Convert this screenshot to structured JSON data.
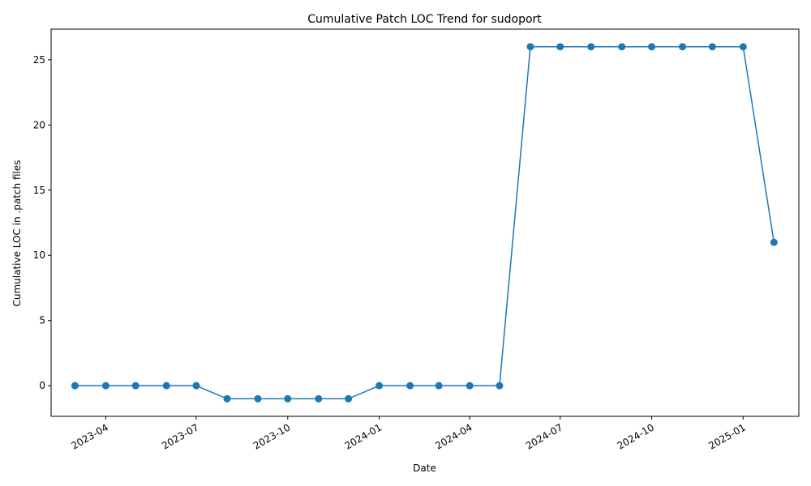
{
  "chart_data": {
    "type": "line",
    "title": "Cumulative Patch LOC Trend for sudoport",
    "xlabel": "Date",
    "ylabel": "Cumulative LOC in .patch files",
    "x": [
      "2023-03-01",
      "2023-04-01",
      "2023-05-01",
      "2023-06-01",
      "2023-07-01",
      "2023-08-01",
      "2023-09-01",
      "2023-10-01",
      "2023-11-01",
      "2023-12-01",
      "2024-01-01",
      "2024-02-01",
      "2024-03-01",
      "2024-04-01",
      "2024-05-01",
      "2024-06-01",
      "2024-07-01",
      "2024-08-01",
      "2024-09-01",
      "2024-10-01",
      "2024-11-01",
      "2024-12-01",
      "2025-01-01",
      "2025-02-01"
    ],
    "series": [
      {
        "name": "Cumulative LOC",
        "color": "#1f77b4",
        "values": [
          0,
          0,
          0,
          0,
          0,
          -1,
          -1,
          -1,
          -1,
          -1,
          0,
          0,
          0,
          0,
          0,
          26,
          26,
          26,
          26,
          26,
          26,
          26,
          26,
          11
        ]
      }
    ],
    "xticks": [
      "2023-04",
      "2023-07",
      "2023-10",
      "2024-01",
      "2024-04",
      "2024-07",
      "2024-10",
      "2025-01"
    ],
    "xtick_dates": [
      "2023-04-01",
      "2023-07-01",
      "2023-10-01",
      "2024-01-01",
      "2024-04-01",
      "2024-07-01",
      "2024-10-01",
      "2025-01-01"
    ],
    "yticks": [
      0,
      5,
      10,
      15,
      20,
      25
    ],
    "xlim": [
      "2023-02-05",
      "2025-02-26"
    ],
    "ylim": [
      -2.35,
      27.35
    ],
    "grid": false,
    "legend": "none"
  }
}
